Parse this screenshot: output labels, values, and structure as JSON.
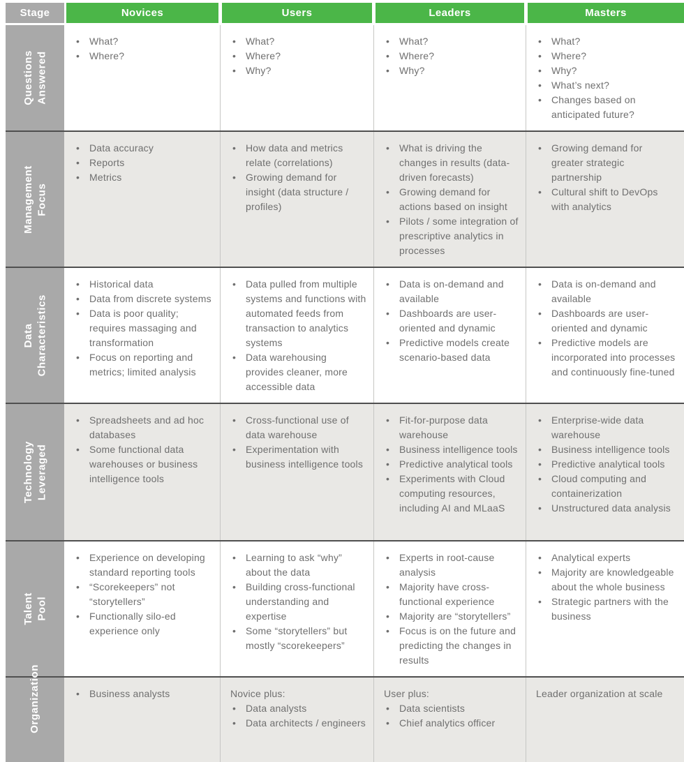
{
  "colors": {
    "green": "#4bb648",
    "label_gray": "#a9a9a9",
    "row_alt_bg": "#e9e8e5",
    "divider_dark": "#4f4f4f",
    "divider_light": "#c6c6c4",
    "body_text": "#6f6f6f",
    "header_text": "#ffffff"
  },
  "header": {
    "stage_label": "Stage",
    "columns": [
      "Novices",
      "Users",
      "Leaders",
      "Masters"
    ]
  },
  "rows": [
    {
      "label": "Questions\nAnswered",
      "cells": [
        {
          "bullets": [
            "What?",
            "Where?"
          ]
        },
        {
          "bullets": [
            "What?",
            "Where?",
            "Why?"
          ]
        },
        {
          "bullets": [
            "What?",
            "Where?",
            "Why?"
          ]
        },
        {
          "bullets": [
            "What?",
            "Where?",
            "Why?",
            "What’s next?",
            "Changes based on anticipated future?"
          ]
        }
      ]
    },
    {
      "label": "Management\nFocus",
      "cells": [
        {
          "bullets": [
            "Data accuracy",
            "Reports",
            "Metrics"
          ]
        },
        {
          "bullets": [
            "How data and metrics relate (correlations)",
            "Growing demand for insight (data structure / profiles)"
          ]
        },
        {
          "bullets": [
            "What is driving the changes in results (data-driven forecasts)",
            "Growing demand for actions based on insight",
            "Pilots / some integration of prescriptive analytics in processes"
          ]
        },
        {
          "bullets": [
            "Growing demand for greater strategic partnership",
            "Cultural shift to DevOps with analytics"
          ]
        }
      ]
    },
    {
      "label": "Data\nCharacteristics",
      "cells": [
        {
          "bullets": [
            "Historical data",
            "Data from discrete systems",
            "Data is poor quality; requires massaging and transformation",
            "Focus on reporting and metrics; limited analysis"
          ]
        },
        {
          "bullets": [
            "Data pulled from multiple systems and functions with automated feeds from transaction to analytics systems",
            "Data warehousing provides cleaner, more accessible data"
          ]
        },
        {
          "bullets": [
            "Data is on-demand and available",
            "Dashboards are user-oriented and dynamic",
            "Predictive models create scenario-based data"
          ]
        },
        {
          "bullets": [
            "Data is on-demand and available",
            "Dashboards are user-oriented and dynamic",
            "Predictive models are incorporated into processes and continuously fine-tuned"
          ]
        }
      ]
    },
    {
      "label": "Technology\nLeveraged",
      "cells": [
        {
          "bullets": [
            "Spreadsheets and ad hoc databases",
            "Some functional data warehouses or business intelligence tools"
          ]
        },
        {
          "bullets": [
            "Cross-functional use of data warehouse",
            "Experimentation with business intelligence tools"
          ]
        },
        {
          "bullets": [
            "Fit-for-purpose data warehouse",
            "Business intelligence tools",
            "Predictive analytical tools",
            "Experiments with Cloud computing resources, including AI and MLaaS"
          ]
        },
        {
          "bullets": [
            "Enterprise-wide data warehouse",
            "Business intelligence tools",
            "Predictive analytical tools",
            "Cloud computing and containerization",
            "Unstructured data analysis"
          ]
        }
      ]
    },
    {
      "label": "Talent\nPool",
      "cells": [
        {
          "bullets": [
            "Experience on developing standard reporting tools",
            "“Scorekeepers” not “storytellers”",
            "Functionally silo-ed experience only"
          ]
        },
        {
          "bullets": [
            "Learning to ask “why” about the data",
            "Building cross-functional understanding and expertise",
            "Some “storytellers” but mostly “scorekeepers”"
          ]
        },
        {
          "bullets": [
            "Experts in root-cause analysis",
            "Majority have cross-functional experience",
            "Majority are “storytellers”",
            "Focus is on the future and predicting the changes in results"
          ]
        },
        {
          "bullets": [
            "Analytical experts",
            "Majority are knowledgeable about the whole business",
            "Strategic partners with the business"
          ]
        }
      ]
    },
    {
      "label": "Organization",
      "cells": [
        {
          "bullets": [
            "Business analysts"
          ]
        },
        {
          "lead": "Novice plus:",
          "bullets": [
            "Data analysts",
            "Data architects / engineers"
          ]
        },
        {
          "lead": "User plus:",
          "bullets": [
            "Data scientists",
            "Chief analytics officer"
          ]
        },
        {
          "lead": "Leader organization at scale",
          "bullets": []
        }
      ]
    }
  ]
}
